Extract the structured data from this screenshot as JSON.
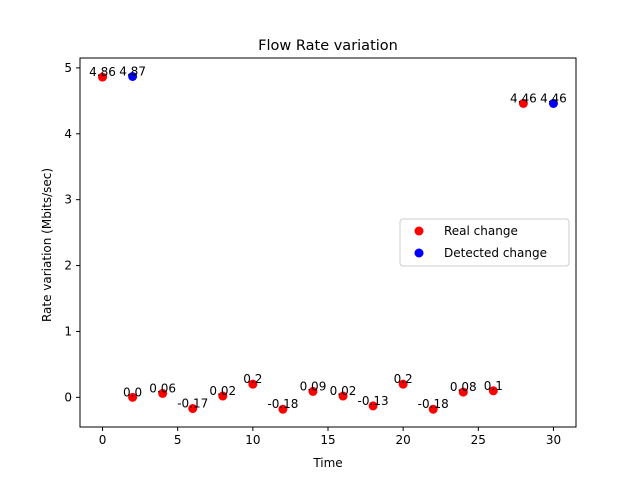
{
  "chart_data": {
    "type": "scatter",
    "title": "Flow Rate variation",
    "xlabel": "Time",
    "ylabel": "Rate variation (Mbits/sec)",
    "xlim": [
      -1.5,
      31.5
    ],
    "ylim": [
      -0.45,
      5.15
    ],
    "xticks": [
      0,
      5,
      10,
      15,
      20,
      25,
      30
    ],
    "yticks": [
      0,
      1,
      2,
      3,
      4,
      5
    ],
    "grid": false,
    "legend_position": "center-right",
    "series": [
      {
        "name": "Real change",
        "color": "#ff0000",
        "points": [
          {
            "x": 0,
            "y": 4.86,
            "label": "4.86"
          },
          {
            "x": 2,
            "y": 0.0,
            "label": "0.0"
          },
          {
            "x": 4,
            "y": 0.06,
            "label": "0.06"
          },
          {
            "x": 6,
            "y": -0.17,
            "label": "-0.17"
          },
          {
            "x": 8,
            "y": 0.02,
            "label": "0.02"
          },
          {
            "x": 10,
            "y": 0.2,
            "label": "0.2"
          },
          {
            "x": 12,
            "y": -0.18,
            "label": "-0.18"
          },
          {
            "x": 14,
            "y": 0.09,
            "label": "0.09"
          },
          {
            "x": 16,
            "y": 0.02,
            "label": "0.02"
          },
          {
            "x": 18,
            "y": -0.13,
            "label": "-0.13"
          },
          {
            "x": 20,
            "y": 0.2,
            "label": "0.2"
          },
          {
            "x": 22,
            "y": -0.18,
            "label": "-0.18"
          },
          {
            "x": 24,
            "y": 0.08,
            "label": "0.08"
          },
          {
            "x": 26,
            "y": 0.1,
            "label": "0.1"
          },
          {
            "x": 28,
            "y": 4.46,
            "label": "4.46"
          }
        ]
      },
      {
        "name": "Detected change",
        "color": "#0000ff",
        "points": [
          {
            "x": 2,
            "y": 4.87,
            "label": "4.87"
          },
          {
            "x": 30,
            "y": 4.46,
            "label": "4.46"
          }
        ]
      }
    ]
  }
}
